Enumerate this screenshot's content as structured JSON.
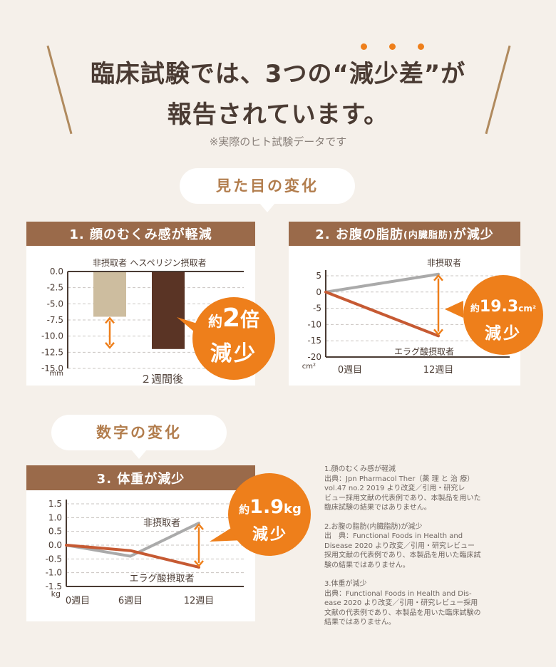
{
  "header": {
    "title_line1": "臨床試験では、3つの“減少差”が",
    "title_line2": "報告されています。",
    "note": "※実際のヒト試験データです"
  },
  "sections": {
    "appearance": "見た目の変化",
    "numbers": "数字の変化"
  },
  "colors": {
    "accent": "#ee7f1b",
    "header_brown": "#9a6a4a",
    "dark_bar": "#5a3425",
    "beige_bar": "#cdbd9f",
    "gray_line": "#aaaaaa",
    "red_line": "#c65a33"
  },
  "charts": {
    "c1": {
      "heading": "1. 顔のむくみ感が軽減",
      "badge_prefix": "約",
      "badge_big": "2",
      "badge_suffix": "倍",
      "badge_line2": "減少"
    },
    "c2": {
      "heading_main": "2. お腹の脂肪",
      "heading_small": "(内臓脂肪)",
      "heading_end": "が減少",
      "badge_prefix": "約",
      "badge_big": "19.3",
      "badge_unit": "cm²",
      "badge_line2": "減少"
    },
    "c3": {
      "heading": "3. 体重が減少",
      "badge_prefix": "約",
      "badge_big": "1.9",
      "badge_unit": "kg",
      "badge_line2": "減少"
    }
  },
  "chart_data": [
    {
      "type": "bar",
      "title": "1. 顔のむくみ感が軽減",
      "categories": [
        "非摂取者",
        "ヘスペリジン摂取者"
      ],
      "values": [
        -7.0,
        -12.0
      ],
      "xlabel": "２週間後",
      "ylabel": "mm",
      "ylim": [
        -15.0,
        0.0
      ],
      "yticks": [
        "0.0",
        "-2.5",
        "-5.0",
        "-7.5",
        "-10.0",
        "-12.5",
        "-15.0"
      ],
      "grid": true
    },
    {
      "type": "line",
      "title": "2. お腹の脂肪(内臓脂肪)が減少",
      "x": [
        "0週目",
        "12週目"
      ],
      "series": [
        {
          "name": "非摂取者",
          "values": [
            0,
            5.5
          ]
        },
        {
          "name": "エラグ酸摂取者",
          "values": [
            0,
            -13.5
          ]
        }
      ],
      "ylabel": "cm²",
      "ylim": [
        -20,
        5
      ],
      "yticks": [
        "5",
        "0",
        "-5",
        "-10",
        "-15",
        "-20"
      ],
      "grid": true
    },
    {
      "type": "line",
      "title": "3. 体重が減少",
      "x": [
        "0週目",
        "6週目",
        "12週目"
      ],
      "series": [
        {
          "name": "非摂取者",
          "values": [
            0,
            -0.4,
            0.8
          ]
        },
        {
          "name": "エラグ酸摂取者",
          "values": [
            0,
            -0.2,
            -0.8
          ]
        }
      ],
      "ylabel": "kg",
      "ylim": [
        -1.5,
        1.5
      ],
      "yticks": [
        "1.5",
        "1.0",
        "0.5",
        "0.0",
        "-0.5",
        "-1.0",
        "-1.5"
      ],
      "grid": true
    }
  ],
  "references": [
    {
      "title": "1.顔のむくみ感が軽減",
      "lines": [
        "出典：Jpn Pharmacol Ther（薬 理 と 治 療）",
        "vol.47 no.2 2019 より改変／引用・研究レ",
        "ビュー採用文献の代表例であり、本製品を用いた",
        "臨床試験の結果ではありません。"
      ]
    },
    {
      "title": "2.お腹の脂肪(内臓脂肪)が減少",
      "lines": [
        "出　典：Functional Foods in Health and",
        "Disease 2020 より改変／引用・研究レビュー",
        "採用文献の代表例であり、本製品を用いた臨床試",
        "験の結果ではありません。"
      ]
    },
    {
      "title": "3.体重が減少",
      "lines": [
        "出典：Functional Foods in Health and Dis-",
        "ease 2020 より改変／引用・研究レビュー採用",
        "文献の代表例であり、本製品を用いた臨床試験の",
        "結果ではありません。"
      ]
    }
  ]
}
